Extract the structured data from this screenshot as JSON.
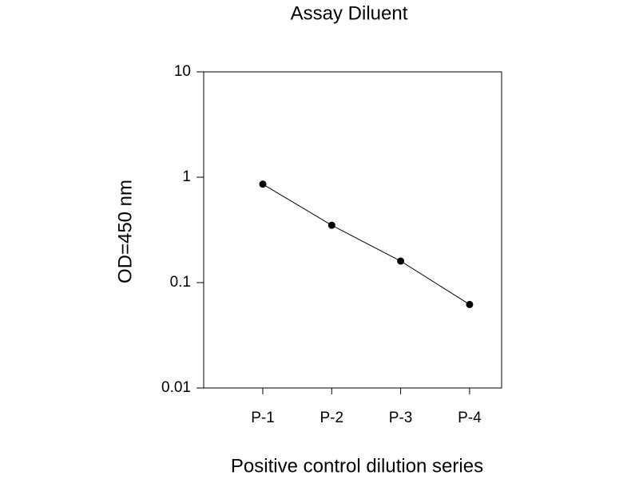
{
  "chart_data": {
    "type": "line",
    "title": "Assay Diluent",
    "x_label": "Positive control dilution series",
    "y_label": "OD=450 nm",
    "categories": [
      "P-1",
      "P-2",
      "P-3",
      "P-4"
    ],
    "values": [
      0.86,
      0.35,
      0.16,
      0.062
    ],
    "color": "#000000",
    "yscale": "log",
    "ylim": [
      0.01,
      10
    ],
    "yticks": [
      0.01,
      0.1,
      1,
      10
    ],
    "grid": false
  }
}
